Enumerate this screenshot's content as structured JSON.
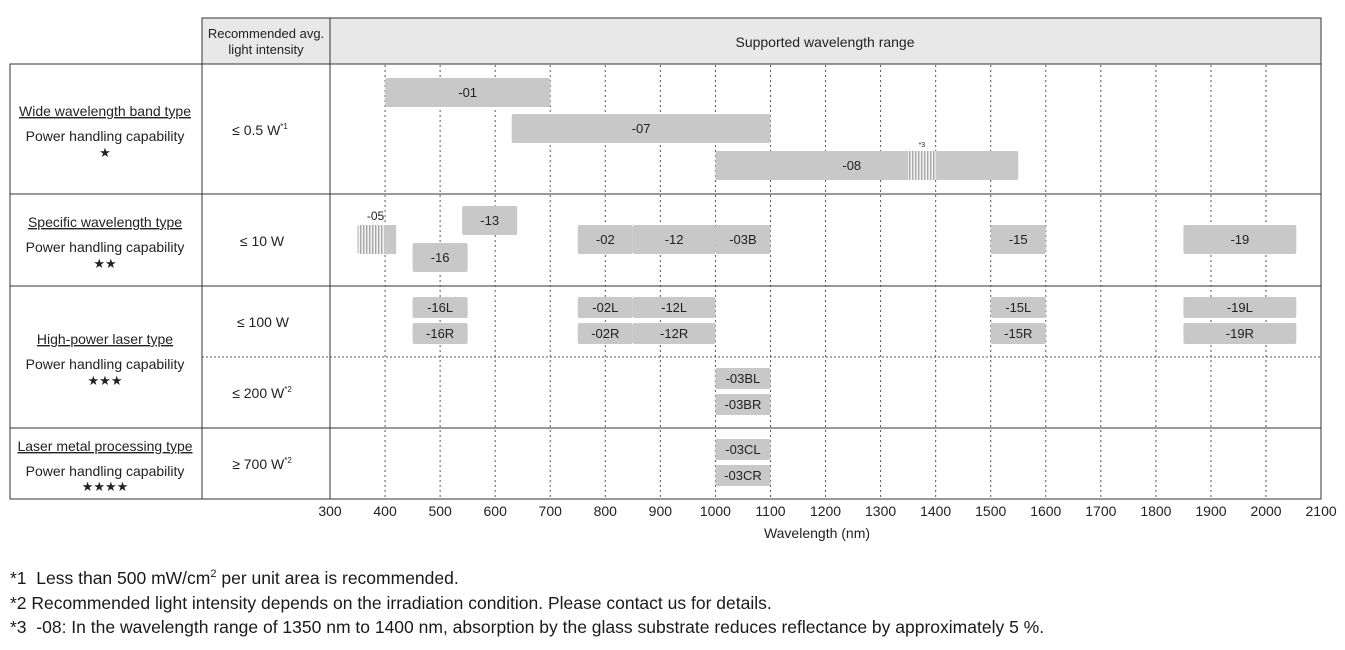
{
  "chart_data": {
    "type": "bar",
    "chart_subtype": "range-gantt",
    "header": {
      "intensity_col": [
        "Recommended avg.",
        "light intensity"
      ],
      "range_col": "Supported wavelength range"
    },
    "xlabel": "Wavelength (nm)",
    "xlim": [
      300,
      2100
    ],
    "xticks": [
      300,
      400,
      500,
      600,
      700,
      800,
      900,
      1000,
      1100,
      1200,
      1300,
      1400,
      1500,
      1600,
      1700,
      1800,
      1900,
      2000,
      2100
    ],
    "grid": "vertical-dotted",
    "row_groups": [
      {
        "id": "wide",
        "type_name": "Wide wavelength band type",
        "capability": "Power handling capability",
        "stars": "★",
        "intensity": [
          {
            "text": "≤ 0.5 W",
            "note": "*1"
          }
        ]
      },
      {
        "id": "specific",
        "type_name": "Specific wavelength type",
        "capability": "Power handling capability",
        "stars": "★★",
        "intensity": [
          {
            "text": "≤ 10 W",
            "note": ""
          }
        ]
      },
      {
        "id": "highpower",
        "type_name": "High-power laser type",
        "capability": "Power handling capability",
        "stars": "★★★",
        "intensity": [
          {
            "text": "≤ 100 W",
            "note": ""
          },
          {
            "text": "≤ 200 W",
            "note": "*2"
          }
        ]
      },
      {
        "id": "metal",
        "type_name": "Laser metal processing type",
        "capability": "Power handling capability",
        "stars": "★★★★",
        "intensity": [
          {
            "text": "≥ 700 W",
            "note": "*2"
          }
        ]
      }
    ],
    "series": [
      {
        "name": "-01",
        "group": "wide",
        "x_start": 400,
        "x_end": 700
      },
      {
        "name": "-07",
        "group": "wide",
        "x_start": 630,
        "x_end": 1100
      },
      {
        "name": "-08",
        "group": "wide",
        "x_start": 1000,
        "x_end": 1550,
        "hatched_from": 1350,
        "hatched_to": 1400,
        "hatch_note": "*3"
      },
      {
        "name": "-05",
        "group": "specific",
        "x_start": 350,
        "x_end": 420,
        "hatched": true
      },
      {
        "name": "-13",
        "group": "specific",
        "x_start": 540,
        "x_end": 640
      },
      {
        "name": "-16",
        "group": "specific",
        "x_start": 450,
        "x_end": 550
      },
      {
        "name": "-02",
        "group": "specific",
        "x_start": 750,
        "x_end": 850
      },
      {
        "name": "-12",
        "group": "specific",
        "x_start": 850,
        "x_end": 1000
      },
      {
        "name": "-03B",
        "group": "specific",
        "x_start": 1000,
        "x_end": 1100
      },
      {
        "name": "-15",
        "group": "specific",
        "x_start": 1500,
        "x_end": 1600
      },
      {
        "name": "-19",
        "group": "specific",
        "x_start": 1850,
        "x_end": 2055
      },
      {
        "name": "-16L",
        "group": "highpower",
        "x_start": 450,
        "x_end": 550
      },
      {
        "name": "-16R",
        "group": "highpower",
        "x_start": 450,
        "x_end": 550
      },
      {
        "name": "-02L",
        "group": "highpower",
        "x_start": 750,
        "x_end": 850
      },
      {
        "name": "-02R",
        "group": "highpower",
        "x_start": 750,
        "x_end": 850
      },
      {
        "name": "-12L",
        "group": "highpower",
        "x_start": 850,
        "x_end": 1000
      },
      {
        "name": "-12R",
        "group": "highpower",
        "x_start": 850,
        "x_end": 1000
      },
      {
        "name": "-15L",
        "group": "highpower",
        "x_start": 1500,
        "x_end": 1600
      },
      {
        "name": "-15R",
        "group": "highpower",
        "x_start": 1500,
        "x_end": 1600
      },
      {
        "name": "-19L",
        "group": "highpower",
        "x_start": 1850,
        "x_end": 2055
      },
      {
        "name": "-19R",
        "group": "highpower",
        "x_start": 1850,
        "x_end": 2055
      },
      {
        "name": "-03BL",
        "group": "highpower",
        "x_start": 1000,
        "x_end": 1100
      },
      {
        "name": "-03BR",
        "group": "highpower",
        "x_start": 1000,
        "x_end": 1100
      },
      {
        "name": "-03CL",
        "group": "metal",
        "x_start": 1000,
        "x_end": 1100
      },
      {
        "name": "-03CR",
        "group": "metal",
        "x_start": 1000,
        "x_end": 1100
      }
    ],
    "colors": {
      "bar": "#c8c8c8",
      "grid": "#555555",
      "header_fill": "#e8e8e8",
      "border": "#333333"
    }
  },
  "footnotes": [
    {
      "mark": "*1",
      "parts": [
        "Less than 500 mW/cm",
        "2",
        " per unit area is recommended."
      ]
    },
    {
      "mark": "*2",
      "text": "Recommended light intensity depends on the irradiation condition. Please contact us for details."
    },
    {
      "mark": "*3",
      "text": "-08: In the wavelength range of 1350 nm to 1400 nm, absorption by the glass substrate reduces reflectance by approximately 5 %."
    }
  ]
}
